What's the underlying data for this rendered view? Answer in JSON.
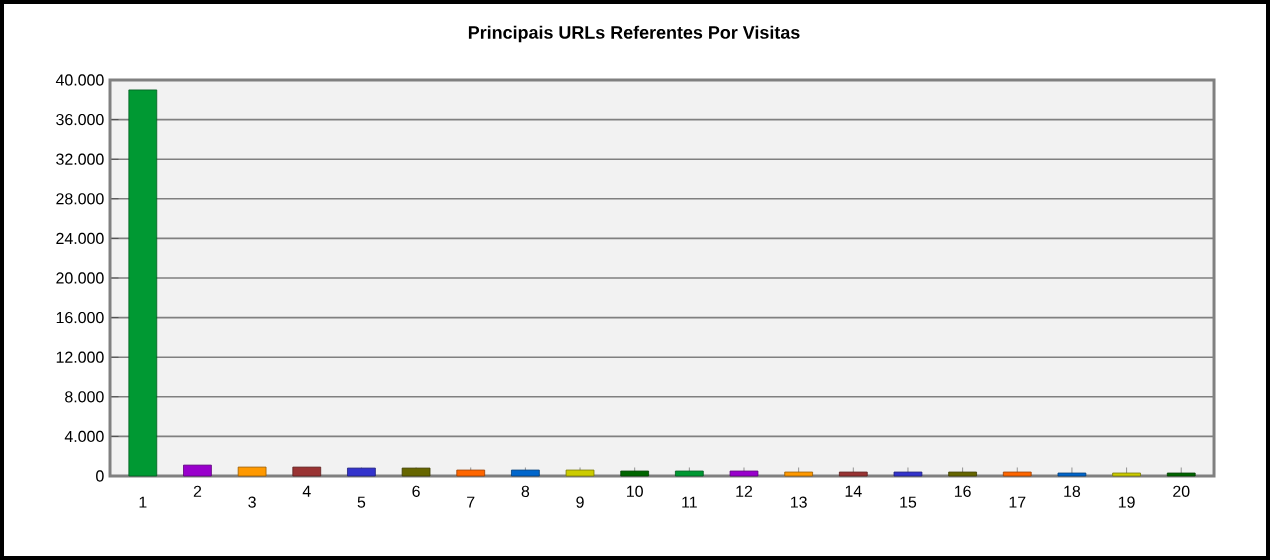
{
  "chart_data": {
    "type": "bar",
    "title": "Principais URLs Referentes Por Visitas",
    "categories": [
      "1",
      "2",
      "3",
      "4",
      "5",
      "6",
      "7",
      "8",
      "9",
      "10",
      "11",
      "12",
      "13",
      "14",
      "15",
      "16",
      "17",
      "18",
      "19",
      "20"
    ],
    "values": [
      39000,
      1100,
      900,
      900,
      800,
      800,
      600,
      600,
      600,
      500,
      500,
      500,
      400,
      400,
      400,
      400,
      400,
      300,
      300,
      300
    ],
    "colors": [
      "#009933",
      "#9900cc",
      "#ff9900",
      "#993333",
      "#3333cc",
      "#666600",
      "#ff6600",
      "#0066cc",
      "#cccc00",
      "#006600",
      "#009933",
      "#9900cc",
      "#ff9900",
      "#993333",
      "#3333cc",
      "#666600",
      "#ff6600",
      "#0066cc",
      "#cccc00",
      "#006600"
    ],
    "ylim": [
      0,
      40000
    ],
    "yticks": [
      0,
      {
        "value": 4000,
        "label": "4.000"
      },
      {
        "value": 8000,
        "label": "8.000"
      },
      {
        "value": 12000,
        "label": "12.000"
      },
      {
        "value": 16000,
        "label": "16.000"
      },
      {
        "value": 20000,
        "label": "20.000"
      },
      {
        "value": 24000,
        "label": "24.000"
      },
      {
        "value": 28000,
        "label": "28.000"
      },
      {
        "value": 32000,
        "label": "32.000"
      },
      {
        "value": 36000,
        "label": "36.000"
      },
      {
        "value": 40000,
        "label": "40.000"
      }
    ],
    "grid": "y"
  }
}
